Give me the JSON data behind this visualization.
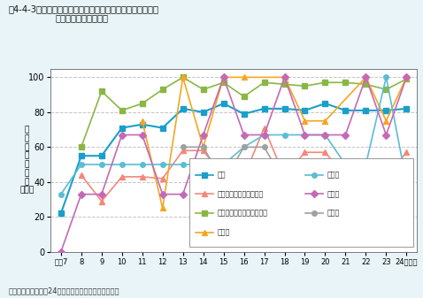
{
  "years": [
    7,
    8,
    9,
    10,
    11,
    12,
    13,
    14,
    15,
    16,
    17,
    18,
    19,
    20,
    21,
    22,
    23,
    24
  ],
  "series": {
    "kaiki": {
      "label": "海域",
      "values": [
        22,
        55,
        55,
        71,
        73,
        71,
        82,
        80,
        85,
        79,
        82,
        82,
        81,
        85,
        81,
        81,
        81,
        82
      ],
      "color": "#1a9fca",
      "marker": "s",
      "lw": 1.5,
      "ms": 4
    },
    "isewan": {
      "label": "伊勢湾（三河湾を含む）",
      "values": [
        null,
        44,
        29,
        43,
        43,
        42,
        58,
        58,
        43,
        43,
        71,
        43,
        57,
        57,
        43,
        43,
        43,
        57
      ],
      "color": "#f4877a",
      "marker": "^",
      "lw": 1.2,
      "ms": 4
    },
    "setonaikai": {
      "label": "瀮戸内海（大阪湾を除く）",
      "values": [
        null,
        60,
        92,
        81,
        85,
        93,
        100,
        93,
        97,
        89,
        97,
        96,
        95,
        97,
        97,
        96,
        93,
        99
      ],
      "color": "#8ab744",
      "marker": "s",
      "lw": 1.2,
      "ms": 4
    },
    "yatsushiro": {
      "label": "八代海",
      "values": [
        null,
        null,
        null,
        null,
        75,
        25,
        100,
        60,
        100,
        100,
        null,
        100,
        75,
        75,
        null,
        100,
        75,
        100
      ],
      "color": "#f5a623",
      "marker": "^",
      "lw": 1.2,
      "ms": 4
    },
    "tokyowan": {
      "label": "東京湾",
      "values": [
        33,
        50,
        50,
        50,
        50,
        50,
        50,
        50,
        50,
        60,
        67,
        67,
        67,
        67,
        50,
        50,
        100,
        40
      ],
      "color": "#5bbcd4",
      "marker": "o",
      "lw": 1.2,
      "ms": 4
    },
    "osakawan": {
      "label": "大阪湾",
      "values": [
        0,
        33,
        33,
        67,
        67,
        33,
        33,
        67,
        100,
        67,
        67,
        100,
        67,
        67,
        67,
        100,
        67,
        100
      ],
      "color": "#c46ab4",
      "marker": "D",
      "lw": 1.2,
      "ms": 4
    },
    "ariakekai": {
      "label": "有明海",
      "values": [
        null,
        null,
        null,
        null,
        null,
        null,
        60,
        60,
        40,
        60,
        60,
        40,
        40,
        40,
        40,
        40,
        40,
        40
      ],
      "color": "#a0a0a0",
      "marker": "o",
      "lw": 1.2,
      "ms": 4
    }
  },
  "xlim": [
    6.5,
    24.5
  ],
  "ylim": [
    0,
    105
  ],
  "yticks": [
    0,
    20,
    40,
    60,
    80,
    100
  ],
  "xtick_labels": [
    "平成7",
    "8",
    "9",
    "10",
    "11",
    "12",
    "13",
    "14",
    "15",
    "16",
    "17",
    "18",
    "19",
    "20",
    "21",
    "22",
    "23",
    "24（年）"
  ],
  "ylabel": "環\n境\n基\n準\n達\n成\n率\n（％）",
  "title1": "図4-4-3　広域的な閉鎖性海域における環境基準達成率の推",
  "title2": "移（全窒素・全りん）",
  "source": "資料：環境省「平成24年度公共用水域水質測定結果」",
  "bg_color": "#e8f4f8",
  "plot_bg": "#ffffff",
  "grid_color": "#aaaaaa"
}
